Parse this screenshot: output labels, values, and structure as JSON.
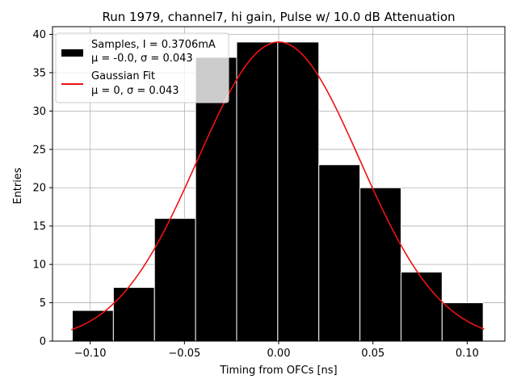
{
  "chart_data": {
    "type": "bar",
    "title": "Run 1979, channel7, hi gain, Pulse w/ 10.0 dB Attenuation",
    "xlabel": "Timing from OFCs [ns]",
    "ylabel": "Entries",
    "xlim": [
      -0.12,
      0.12
    ],
    "ylim": [
      0,
      41
    ],
    "x_ticks": [
      -0.1,
      -0.05,
      0.0,
      0.05,
      0.1
    ],
    "x_tick_labels": [
      "−0.10",
      "−0.05",
      "0.00",
      "0.05",
      "0.10"
    ],
    "y_ticks": [
      0,
      5,
      10,
      15,
      20,
      25,
      30,
      35,
      40
    ],
    "y_tick_labels": [
      "0",
      "5",
      "10",
      "15",
      "20",
      "25",
      "30",
      "35",
      "40"
    ],
    "grid": true,
    "legend_position": "top-left",
    "histogram": {
      "name": "Samples",
      "label_line1": "Samples, I = 0.3706mA",
      "label_line2": "μ = -0.0, σ = 0.043",
      "color": "#000000",
      "edge_color": "#ffffff",
      "bin_edges": [
        -0.1095,
        -0.0877,
        -0.0659,
        -0.0441,
        -0.0223,
        -0.0005,
        0.0213,
        0.0431,
        0.0649,
        0.0867,
        0.1085
      ],
      "counts": [
        4,
        7,
        16,
        37,
        39,
        39,
        23,
        20,
        9,
        5
      ]
    },
    "fit": {
      "name": "Gaussian Fit",
      "label_line1": "Gaussian Fit",
      "label_line2": "μ = 0, σ = 0.043",
      "color": "#ee1111",
      "mu": 0,
      "sigma": 0.043,
      "amplitude": 39,
      "x_range": [
        -0.11,
        0.109
      ]
    }
  }
}
